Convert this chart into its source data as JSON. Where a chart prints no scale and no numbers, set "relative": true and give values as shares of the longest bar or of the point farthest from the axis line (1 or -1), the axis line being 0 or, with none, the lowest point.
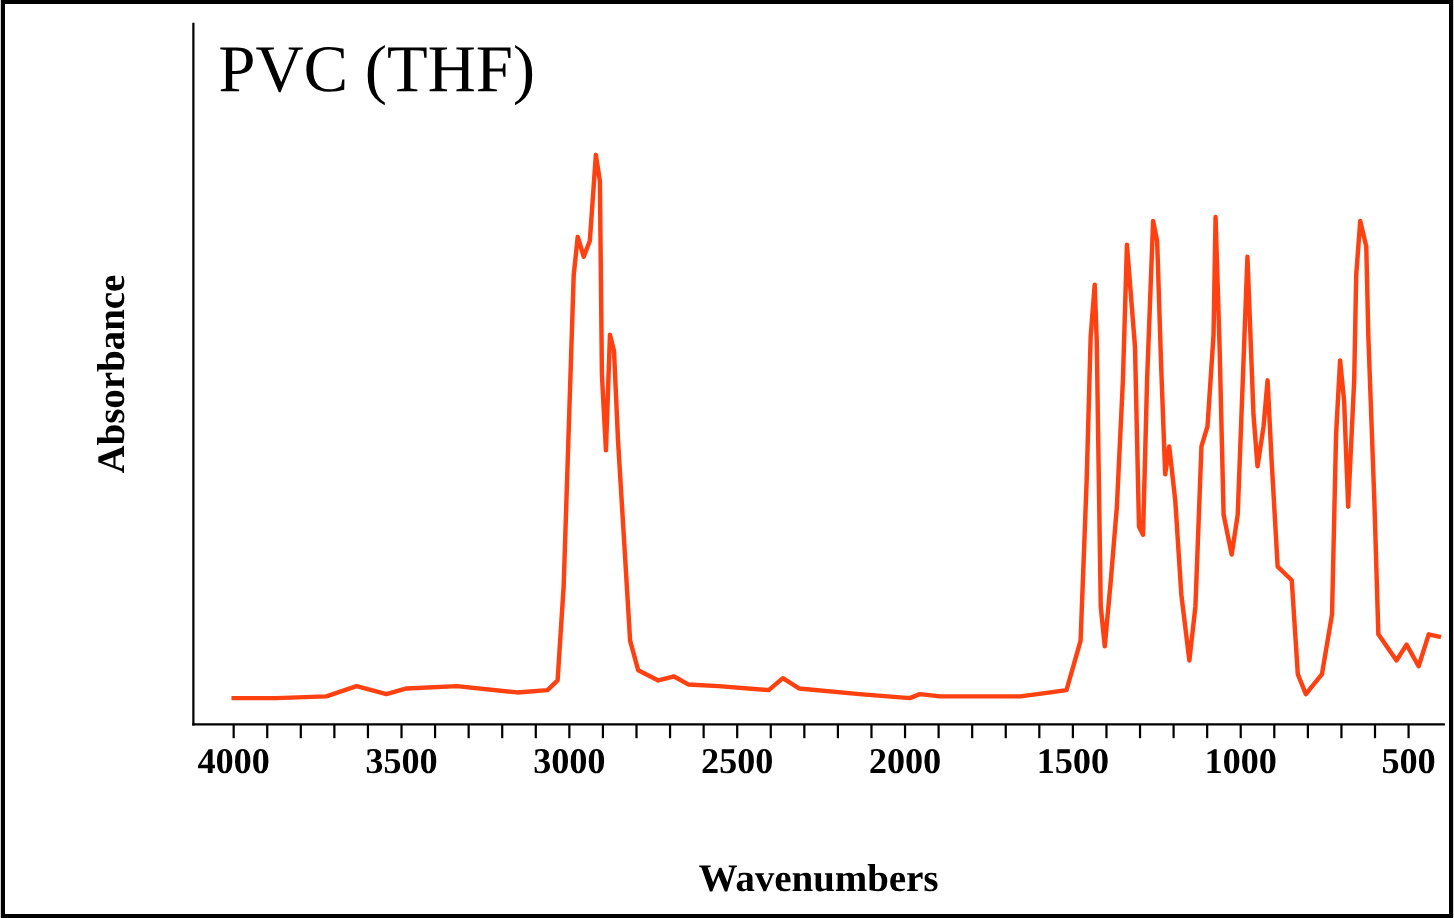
{
  "chart_data": {
    "type": "line",
    "title": "PVC (THF)",
    "xlabel": "Wavenumbers",
    "ylabel": "Absorbance",
    "relative": true,
    "grid": false,
    "marker": "none",
    "line_style": "solid",
    "xlim": [
      4120,
      395
    ],
    "xticks": [
      4000,
      {
        "value": 3900,
        "label": null
      },
      {
        "value": 3800,
        "label": null
      },
      {
        "value": 3700,
        "label": null
      },
      {
        "value": 3600,
        "label": null
      },
      3500,
      {
        "value": 3400,
        "label": null
      },
      {
        "value": 3300,
        "label": null
      },
      {
        "value": 3200,
        "label": null
      },
      {
        "value": 3100,
        "label": null
      },
      3000,
      {
        "value": 2900,
        "label": null
      },
      {
        "value": 2800,
        "label": null
      },
      {
        "value": 2700,
        "label": null
      },
      {
        "value": 2600,
        "label": null
      },
      2500,
      {
        "value": 2400,
        "label": null
      },
      {
        "value": 2300,
        "label": null
      },
      {
        "value": 2200,
        "label": null
      },
      {
        "value": 2100,
        "label": null
      },
      2000,
      {
        "value": 1900,
        "label": null
      },
      {
        "value": 1800,
        "label": null
      },
      {
        "value": 1700,
        "label": null
      },
      {
        "value": 1600,
        "label": null
      },
      1500,
      {
        "value": 1400,
        "label": null
      },
      {
        "value": 1300,
        "label": null
      },
      {
        "value": 1200,
        "label": null
      },
      {
        "value": 1100,
        "label": null
      },
      1000,
      {
        "value": 900,
        "label": null
      },
      {
        "value": 800,
        "label": null
      },
      {
        "value": 700,
        "label": null
      },
      {
        "value": 600,
        "label": null
      },
      500
    ],
    "series": [
      {
        "color": "#ff4010",
        "x": [
          4000,
          3874,
          3724,
          3634,
          3545,
          3485,
          3335,
          3155,
          3065,
          3035,
          3017,
          2987,
          2975,
          2957,
          2939,
          2921,
          2909,
          2903,
          2891,
          2879,
          2867,
          2855,
          2837,
          2819,
          2795,
          2735,
          2688,
          2646,
          2556,
          2406,
          2364,
          2316,
          2136,
          1986,
          1956,
          1896,
          1777,
          1657,
          1567,
          1519,
          1477,
          1459,
          1447,
          1435,
          1429,
          1417,
          1405,
          1387,
          1369,
          1351,
          1339,
          1315,
          1303,
          1291,
          1279,
          1261,
          1249,
          1237,
          1225,
          1213,
          1195,
          1177,
          1153,
          1135,
          1117,
          1099,
          1081,
          1075,
          1063,
          1051,
          1027,
          1009,
          980,
          962,
          950,
          932,
          920,
          908,
          890,
          848,
          830,
          806,
          758,
          728,
          716,
          704,
          692,
          680,
          662,
          656,
          644,
          626,
          620,
          602,
          590,
          536,
          506,
          470,
          440,
          410
        ],
        "values": [
          0.046,
          0.046,
          0.049,
          0.067,
          0.053,
          0.063,
          0.067,
          0.056,
          0.06,
          0.077,
          0.242,
          0.789,
          0.856,
          0.821,
          0.849,
          1.0,
          0.954,
          0.614,
          0.481,
          0.684,
          0.656,
          0.498,
          0.323,
          0.147,
          0.095,
          0.077,
          0.084,
          0.07,
          0.067,
          0.06,
          0.081,
          0.063,
          0.053,
          0.046,
          0.053,
          0.049,
          0.049,
          0.049,
          0.056,
          0.06,
          0.147,
          0.428,
          0.681,
          0.772,
          0.674,
          0.207,
          0.137,
          0.253,
          0.382,
          0.604,
          0.842,
          0.663,
          0.347,
          0.333,
          0.604,
          0.884,
          0.849,
          0.628,
          0.439,
          0.488,
          0.393,
          0.228,
          0.112,
          0.207,
          0.488,
          0.523,
          0.684,
          0.891,
          0.663,
          0.368,
          0.298,
          0.368,
          0.821,
          0.544,
          0.453,
          0.523,
          0.604,
          0.463,
          0.277,
          0.253,
          0.088,
          0.053,
          0.088,
          0.193,
          0.509,
          0.639,
          0.568,
          0.382,
          0.604,
          0.789,
          0.884,
          0.839,
          0.684,
          0.393,
          0.158,
          0.112,
          0.14,
          0.102,
          0.158,
          0.154
        ]
      }
    ]
  }
}
